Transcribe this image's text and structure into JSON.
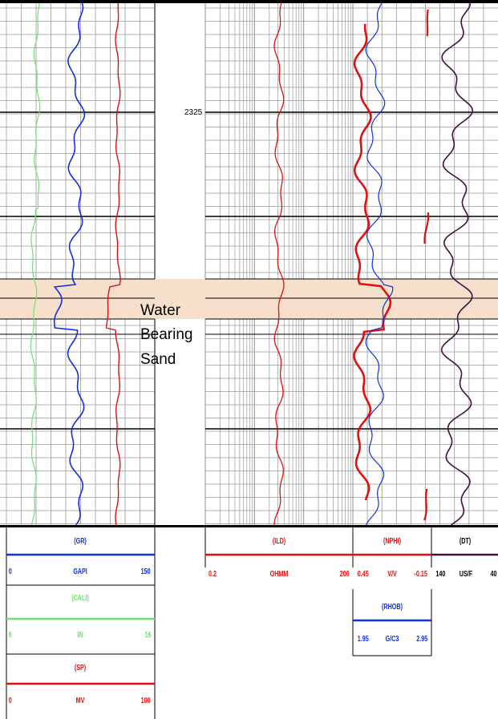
{
  "depth_label": "2325",
  "annotation": {
    "lines": [
      "Water",
      "Bearing",
      "Sand"
    ]
  },
  "colors": {
    "gr": "#1030e0",
    "cali": "#70e070",
    "sp": "#e01010",
    "ild": "#e01010",
    "nphi": "#e01010",
    "rhob": "#1030e0",
    "dt": "#401040",
    "zone_fill": "#f6dfcb",
    "grid": "#999999",
    "major_grid": "#000000"
  },
  "headers": {
    "gr": {
      "name": "(GR)",
      "left": "0",
      "unit": "GAPI",
      "right": "150"
    },
    "cali": {
      "name": "(CALI)",
      "left": "6",
      "unit": "IN",
      "right": "16"
    },
    "sp": {
      "name": "(SP)",
      "left": "0",
      "unit": "MV",
      "right": "100"
    },
    "ild": {
      "name": "(ILD)",
      "left": "0.2",
      "unit": "OHMM",
      "right": "200"
    },
    "nphi": {
      "name": "(NPHI)",
      "left": "0.45",
      "unit": "V/V",
      "right": "-0.15"
    },
    "rhob": {
      "name": "(RHOB)",
      "left": "1.95",
      "unit": "G/C3",
      "right": "2.95"
    },
    "dt": {
      "name": "(DT)",
      "left": "140",
      "unit": "US/F",
      "right": "40"
    }
  }
}
